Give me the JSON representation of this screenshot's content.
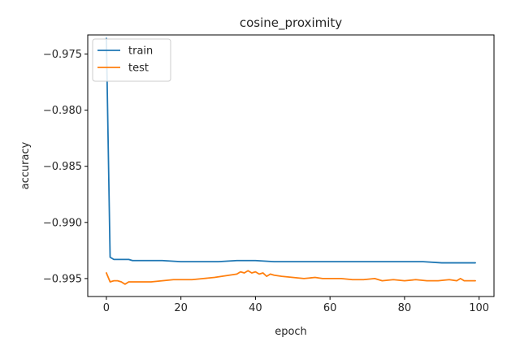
{
  "chart_data": {
    "type": "line",
    "title": "cosine_proximity",
    "xlabel": "epoch",
    "ylabel": "accuracy",
    "xlim": [
      -5,
      104
    ],
    "ylim": [
      -0.9966,
      -0.9733
    ],
    "xticks": [
      0,
      20,
      40,
      60,
      80,
      100
    ],
    "yticks": [
      -0.975,
      -0.98,
      -0.985,
      -0.99,
      -0.995
    ],
    "xtick_labels": [
      "0",
      "20",
      "40",
      "60",
      "80",
      "100"
    ],
    "ytick_labels": [
      "−0.975",
      "−0.980",
      "−0.985",
      "−0.990",
      "−0.995"
    ],
    "grid": false,
    "legend_position": "top-left",
    "series": [
      {
        "name": "train",
        "color": "#1f77b4",
        "points": [
          [
            0,
            -0.9736
          ],
          [
            1,
            -0.9931
          ],
          [
            2,
            -0.9933
          ],
          [
            3,
            -0.9933
          ],
          [
            4,
            -0.9933
          ],
          [
            5,
            -0.9933
          ],
          [
            6,
            -0.9933
          ],
          [
            7,
            -0.9934
          ],
          [
            10,
            -0.9934
          ],
          [
            15,
            -0.9934
          ],
          [
            20,
            -0.9935
          ],
          [
            25,
            -0.9935
          ],
          [
            30,
            -0.9935
          ],
          [
            35,
            -0.9934
          ],
          [
            40,
            -0.9934
          ],
          [
            45,
            -0.9935
          ],
          [
            50,
            -0.9935
          ],
          [
            55,
            -0.9935
          ],
          [
            60,
            -0.9935
          ],
          [
            65,
            -0.9935
          ],
          [
            70,
            -0.9935
          ],
          [
            75,
            -0.9935
          ],
          [
            80,
            -0.9935
          ],
          [
            85,
            -0.9935
          ],
          [
            90,
            -0.9936
          ],
          [
            95,
            -0.9936
          ],
          [
            99,
            -0.9936
          ]
        ]
      },
      {
        "name": "test",
        "color": "#ff7f0e",
        "points": [
          [
            0,
            -0.9945
          ],
          [
            1,
            -0.9953
          ],
          [
            2,
            -0.9952
          ],
          [
            3,
            -0.9952
          ],
          [
            4,
            -0.9953
          ],
          [
            5,
            -0.9955
          ],
          [
            6,
            -0.9953
          ],
          [
            8,
            -0.9953
          ],
          [
            10,
            -0.9953
          ],
          [
            12,
            -0.9953
          ],
          [
            15,
            -0.9952
          ],
          [
            18,
            -0.9951
          ],
          [
            20,
            -0.9951
          ],
          [
            23,
            -0.9951
          ],
          [
            26,
            -0.995
          ],
          [
            29,
            -0.9949
          ],
          [
            31,
            -0.9948
          ],
          [
            33,
            -0.9947
          ],
          [
            35,
            -0.9946
          ],
          [
            36,
            -0.9944
          ],
          [
            37,
            -0.9945
          ],
          [
            38,
            -0.9943
          ],
          [
            39,
            -0.9945
          ],
          [
            40,
            -0.9944
          ],
          [
            41,
            -0.9946
          ],
          [
            42,
            -0.9945
          ],
          [
            43,
            -0.9948
          ],
          [
            44,
            -0.9946
          ],
          [
            45,
            -0.9947
          ],
          [
            47,
            -0.9948
          ],
          [
            50,
            -0.9949
          ],
          [
            53,
            -0.995
          ],
          [
            56,
            -0.9949
          ],
          [
            58,
            -0.995
          ],
          [
            60,
            -0.995
          ],
          [
            63,
            -0.995
          ],
          [
            66,
            -0.9951
          ],
          [
            69,
            -0.9951
          ],
          [
            72,
            -0.995
          ],
          [
            74,
            -0.9952
          ],
          [
            77,
            -0.9951
          ],
          [
            80,
            -0.9952
          ],
          [
            83,
            -0.9951
          ],
          [
            86,
            -0.9952
          ],
          [
            89,
            -0.9952
          ],
          [
            92,
            -0.9951
          ],
          [
            94,
            -0.9952
          ],
          [
            95,
            -0.995
          ],
          [
            96,
            -0.9952
          ],
          [
            98,
            -0.9952
          ],
          [
            99,
            -0.9952
          ]
        ]
      }
    ]
  }
}
